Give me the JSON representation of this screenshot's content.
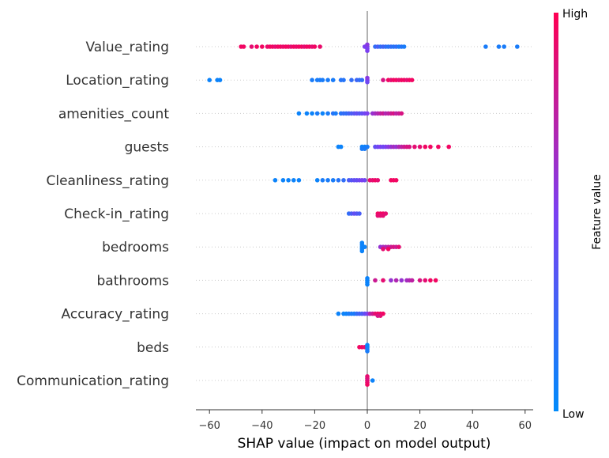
{
  "chart_data": {
    "type": "scatter",
    "subtype": "shap-beeswarm",
    "xlabel": "SHAP value (impact on model output)",
    "xlim": [
      -66,
      62
    ],
    "xticks": [
      -60,
      -40,
      -20,
      0,
      20,
      40,
      60
    ],
    "colorbar": {
      "label": "Feature value",
      "high": "High",
      "low": "Low",
      "low_color": "#008bfb",
      "high_color": "#ff0052"
    },
    "features": [
      {
        "name": "Value_rating",
        "points": [
          [
            -48,
            0.95
          ],
          [
            -47,
            0.95
          ],
          [
            -44,
            0.9
          ],
          [
            -42,
            0.95
          ],
          [
            -40,
            0.95
          ],
          [
            -38,
            0.92
          ],
          [
            -37,
            0.95
          ],
          [
            -36,
            0.95
          ],
          [
            -35,
            0.9
          ],
          [
            -34,
            0.95
          ],
          [
            -33,
            0.95
          ],
          [
            -32,
            0.92
          ],
          [
            -31,
            0.95
          ],
          [
            -30,
            0.95
          ],
          [
            -29,
            0.9
          ],
          [
            -28,
            0.95
          ],
          [
            -27,
            0.92
          ],
          [
            -26,
            0.95
          ],
          [
            -25,
            0.95
          ],
          [
            -24,
            0.9
          ],
          [
            -23,
            0.95
          ],
          [
            -22,
            0.95
          ],
          [
            -21,
            0.9
          ],
          [
            -20,
            0.95
          ],
          [
            -18,
            0.92
          ],
          [
            -1,
            0.5
          ],
          [
            0,
            0.45
          ],
          [
            0,
            0.5
          ],
          [
            0,
            0.55
          ],
          [
            0,
            0.5
          ],
          [
            3,
            0.2
          ],
          [
            4,
            0.3
          ],
          [
            5,
            0.2
          ],
          [
            6,
            0.25
          ],
          [
            7,
            0.2
          ],
          [
            8,
            0.15
          ],
          [
            9,
            0.2
          ],
          [
            10,
            0.15
          ],
          [
            11,
            0.2
          ],
          [
            12,
            0.1
          ],
          [
            13,
            0.15
          ],
          [
            14,
            0.1
          ],
          [
            45,
            0.1
          ],
          [
            50,
            0.1
          ],
          [
            52,
            0.1
          ],
          [
            57,
            0.1
          ]
        ]
      },
      {
        "name": "Location_rating",
        "points": [
          [
            -60,
            0.05
          ],
          [
            -57,
            0.05
          ],
          [
            -56,
            0.05
          ],
          [
            -21,
            0.1
          ],
          [
            -19,
            0.1
          ],
          [
            -18,
            0.1
          ],
          [
            -17,
            0.1
          ],
          [
            -15,
            0.1
          ],
          [
            -13,
            0.1
          ],
          [
            -10,
            0.15
          ],
          [
            -9,
            0.15
          ],
          [
            -6,
            0.2
          ],
          [
            -4,
            0.25
          ],
          [
            -3,
            0.2
          ],
          [
            -2,
            0.2
          ],
          [
            0,
            0.5
          ],
          [
            0,
            0.45
          ],
          [
            0,
            0.55
          ],
          [
            6,
            0.85
          ],
          [
            8,
            0.95
          ],
          [
            9,
            0.9
          ],
          [
            10,
            0.95
          ],
          [
            11,
            0.95
          ],
          [
            12,
            0.9
          ],
          [
            13,
            0.95
          ],
          [
            14,
            0.95
          ],
          [
            15,
            0.9
          ],
          [
            16,
            0.95
          ],
          [
            17,
            0.95
          ]
        ]
      },
      {
        "name": "amenities_count",
        "points": [
          [
            -26,
            0.05
          ],
          [
            -23,
            0.05
          ],
          [
            -21,
            0.05
          ],
          [
            -19,
            0.1
          ],
          [
            -17,
            0.05
          ],
          [
            -15,
            0.1
          ],
          [
            -13,
            0.15
          ],
          [
            -12,
            0.1
          ],
          [
            -10,
            0.15
          ],
          [
            -9,
            0.2
          ],
          [
            -8,
            0.2
          ],
          [
            -7,
            0.25
          ],
          [
            -6,
            0.3
          ],
          [
            -5,
            0.35
          ],
          [
            -4,
            0.4
          ],
          [
            -3,
            0.35
          ],
          [
            -2,
            0.4
          ],
          [
            -1,
            0.45
          ],
          [
            0,
            0.5
          ],
          [
            2,
            0.6
          ],
          [
            3,
            0.65
          ],
          [
            4,
            0.7
          ],
          [
            5,
            0.75
          ],
          [
            6,
            0.8
          ],
          [
            7,
            0.7
          ],
          [
            8,
            0.75
          ],
          [
            9,
            0.8
          ],
          [
            10,
            0.85
          ],
          [
            11,
            0.75
          ],
          [
            12,
            0.8
          ],
          [
            13,
            0.85
          ]
        ]
      },
      {
        "name": "guests",
        "points": [
          [
            -11,
            0.05
          ],
          [
            -10,
            0.05
          ],
          [
            -2,
            0.05
          ],
          [
            -1,
            0.05
          ],
          [
            -1,
            0.1
          ],
          [
            0,
            0.1
          ],
          [
            -2,
            0.1
          ],
          [
            3,
            0.4
          ],
          [
            4,
            0.45
          ],
          [
            5,
            0.5
          ],
          [
            6,
            0.45
          ],
          [
            7,
            0.5
          ],
          [
            8,
            0.55
          ],
          [
            9,
            0.6
          ],
          [
            10,
            0.65
          ],
          [
            11,
            0.6
          ],
          [
            12,
            0.7
          ],
          [
            13,
            0.75
          ],
          [
            14,
            0.8
          ],
          [
            15,
            0.85
          ],
          [
            16,
            0.85
          ],
          [
            18,
            0.9
          ],
          [
            20,
            0.9
          ],
          [
            22,
            0.95
          ],
          [
            24,
            0.95
          ],
          [
            27,
            0.95
          ],
          [
            31,
            0.95
          ]
        ]
      },
      {
        "name": "Cleanliness_rating",
        "points": [
          [
            -35,
            0.05
          ],
          [
            -32,
            0.05
          ],
          [
            -30,
            0.05
          ],
          [
            -28,
            0.05
          ],
          [
            -26,
            0.05
          ],
          [
            -19,
            0.05
          ],
          [
            -17,
            0.1
          ],
          [
            -15,
            0.1
          ],
          [
            -13,
            0.1
          ],
          [
            -11,
            0.15
          ],
          [
            -9,
            0.2
          ],
          [
            -7,
            0.3
          ],
          [
            -6,
            0.35
          ],
          [
            -5,
            0.4
          ],
          [
            -4,
            0.4
          ],
          [
            -3,
            0.45
          ],
          [
            -2,
            0.5
          ],
          [
            -1,
            0.45
          ],
          [
            1,
            0.9
          ],
          [
            2,
            0.9
          ],
          [
            3,
            0.95
          ],
          [
            4,
            0.9
          ],
          [
            9,
            0.95
          ],
          [
            10,
            0.95
          ],
          [
            11,
            0.95
          ]
        ]
      },
      {
        "name": "Check-in_rating",
        "points": [
          [
            -7,
            0.2
          ],
          [
            -6,
            0.3
          ],
          [
            -5,
            0.4
          ],
          [
            -4,
            0.35
          ],
          [
            -3,
            0.3
          ],
          [
            4,
            0.95
          ],
          [
            5,
            0.95
          ],
          [
            6,
            0.95
          ],
          [
            7,
            0.9
          ],
          [
            6,
            0.9
          ],
          [
            5,
            0.9
          ],
          [
            4,
            0.9
          ]
        ]
      },
      {
        "name": "bedrooms",
        "points": [
          [
            -2,
            0.05
          ],
          [
            -2,
            0.05
          ],
          [
            -2,
            0.05
          ],
          [
            -2,
            0.05
          ],
          [
            -2,
            0.05
          ],
          [
            -1,
            0.05
          ],
          [
            5,
            0.6
          ],
          [
            6,
            0.65
          ],
          [
            7,
            0.7
          ],
          [
            8,
            0.75
          ],
          [
            9,
            0.8
          ],
          [
            10,
            0.85
          ],
          [
            11,
            0.8
          ],
          [
            12,
            0.9
          ],
          [
            6,
            0.9
          ],
          [
            8,
            0.95
          ]
        ]
      },
      {
        "name": "bathrooms",
        "points": [
          [
            0,
            0.05
          ],
          [
            0,
            0.05
          ],
          [
            0,
            0.05
          ],
          [
            0,
            0.05
          ],
          [
            3,
            0.8
          ],
          [
            6,
            0.9
          ],
          [
            9,
            0.6
          ],
          [
            11,
            0.7
          ],
          [
            13,
            0.6
          ],
          [
            15,
            0.65
          ],
          [
            16,
            0.7
          ],
          [
            17,
            0.75
          ],
          [
            20,
            0.85
          ],
          [
            22,
            0.9
          ],
          [
            24,
            0.95
          ],
          [
            26,
            0.95
          ]
        ]
      },
      {
        "name": "Accuracy_rating",
        "points": [
          [
            -11,
            0.05
          ],
          [
            -9,
            0.05
          ],
          [
            -8,
            0.05
          ],
          [
            -7,
            0.1
          ],
          [
            -6,
            0.1
          ],
          [
            -5,
            0.1
          ],
          [
            -4,
            0.2
          ],
          [
            -3,
            0.25
          ],
          [
            -2,
            0.3
          ],
          [
            -1,
            0.4
          ],
          [
            0,
            0.5
          ],
          [
            1,
            0.7
          ],
          [
            2,
            0.8
          ],
          [
            3,
            0.9
          ],
          [
            4,
            0.95
          ],
          [
            5,
            0.95
          ],
          [
            6,
            0.95
          ],
          [
            5,
            0.9
          ],
          [
            4,
            0.85
          ]
        ]
      },
      {
        "name": "beds",
        "points": [
          [
            -3,
            0.95
          ],
          [
            -2,
            0.95
          ],
          [
            -1,
            0.9
          ],
          [
            0,
            0.05
          ],
          [
            0,
            0.1
          ],
          [
            0,
            0.05
          ],
          [
            0,
            0.1
          ]
        ]
      },
      {
        "name": "Communication_rating",
        "points": [
          [
            0,
            0.95
          ],
          [
            0,
            0.9
          ],
          [
            0,
            0.85
          ],
          [
            0,
            0.95
          ],
          [
            0,
            0.9
          ],
          [
            2,
            0.05
          ]
        ]
      }
    ]
  }
}
